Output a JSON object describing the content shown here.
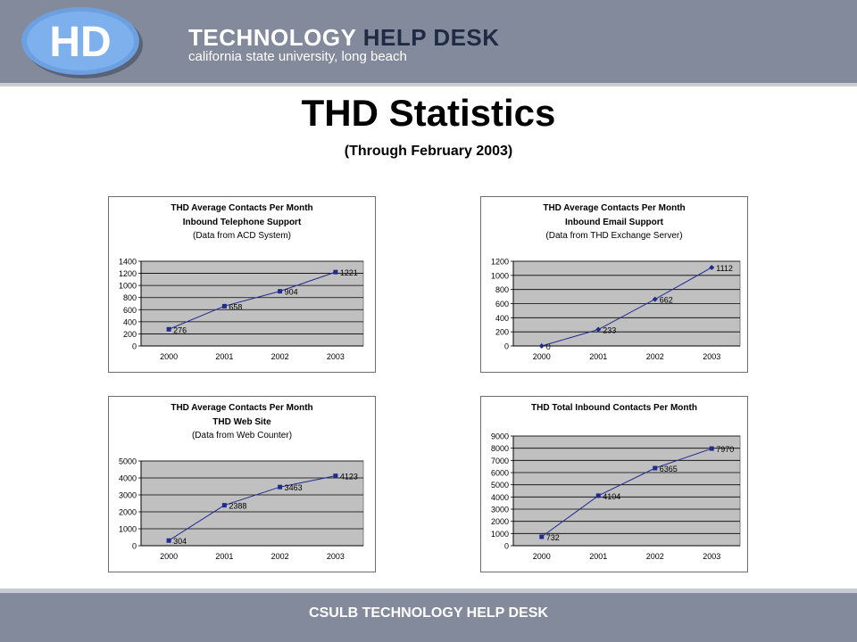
{
  "header": {
    "logo_text": "HD",
    "brand_part1": "TECHNOLOGY",
    "brand_part2": "HELP DESK",
    "brand_sub": "california state university, long beach"
  },
  "page": {
    "title": "THD Statistics",
    "subtitle": "(Through February 2003)"
  },
  "footer": {
    "text": "CSULB TECHNOLOGY HELP DESK"
  },
  "chart_data": [
    {
      "type": "line",
      "title_lines": [
        "THD Average Contacts Per Month",
        "Inbound Telephone Support",
        "(Data from ACD System)"
      ],
      "categories": [
        "2000",
        "2001",
        "2002",
        "2003"
      ],
      "series": [
        {
          "values": [
            276,
            658,
            904,
            1221
          ]
        }
      ],
      "ylim": [
        0,
        1400
      ],
      "yticks": [
        0,
        200,
        400,
        600,
        800,
        1000,
        1200,
        1400
      ],
      "grid": true,
      "marker": "square"
    },
    {
      "type": "line",
      "title_lines": [
        "THD Average Contacts Per Month",
        "Inbound Email Support",
        "(Data from THD Exchange Server)"
      ],
      "categories": [
        "2000",
        "2001",
        "2002",
        "2003"
      ],
      "series": [
        {
          "values": [
            0,
            233,
            662,
            1112
          ]
        }
      ],
      "ylim": [
        0,
        1200
      ],
      "yticks": [
        0,
        200,
        400,
        600,
        800,
        1000,
        1200
      ],
      "grid": true,
      "marker": "diamond"
    },
    {
      "type": "line",
      "title_lines": [
        "THD Average Contacts Per Month",
        "THD Web Site",
        "(Data from Web Counter)"
      ],
      "categories": [
        "2000",
        "2001",
        "2002",
        "2003"
      ],
      "series": [
        {
          "values": [
            304,
            2388,
            3463,
            4123
          ]
        }
      ],
      "ylim": [
        0,
        5000
      ],
      "yticks": [
        0,
        1000,
        2000,
        3000,
        4000,
        5000
      ],
      "grid": true,
      "marker": "square"
    },
    {
      "type": "line",
      "title_lines": [
        "THD Total Inbound Contacts Per Month"
      ],
      "categories": [
        "2000",
        "2001",
        "2002",
        "2003"
      ],
      "series": [
        {
          "values": [
            732,
            4104,
            6365,
            7970
          ]
        }
      ],
      "ylim": [
        0,
        9000
      ],
      "yticks": [
        0,
        1000,
        2000,
        3000,
        4000,
        5000,
        6000,
        7000,
        8000,
        9000
      ],
      "grid": true,
      "marker": "square"
    }
  ]
}
